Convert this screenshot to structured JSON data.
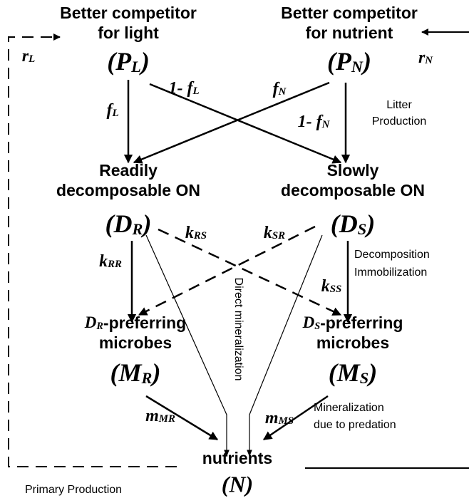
{
  "nodes": [
    {
      "title": [
        "Better competitor",
        "for light"
      ],
      "symbol": "(P",
      "sub": "L",
      "close": ")"
    },
    {
      "title": [
        "Better competitor",
        "for nutrient"
      ],
      "symbol": "(P",
      "sub": "N",
      "close": ")"
    },
    {
      "title": [
        "Readily",
        "decomposable ON"
      ],
      "symbol": "(D",
      "sub": "R",
      "close": ")"
    },
    {
      "title": [
        "Slowly",
        "decomposable ON"
      ],
      "symbol": "(D",
      "sub": "S",
      "close": ")"
    },
    {
      "prefix": "D",
      "prefix_sub": "R",
      "title": [
        "-preferring",
        "microbes"
      ],
      "symbol": "(M",
      "sub": "R",
      "close": ")"
    },
    {
      "prefix": "D",
      "prefix_sub": "S",
      "title": [
        "-preferring",
        "microbes"
      ],
      "symbol": "(M",
      "sub": "S",
      "close": ")"
    },
    {
      "title": [
        "nutrients"
      ],
      "symbol": "(N)"
    }
  ],
  "edge_labels": [
    {
      "main": "r",
      "sub": "L"
    },
    {
      "main": "r",
      "sub": "N"
    },
    {
      "main": "f",
      "sub": "L"
    },
    {
      "main": "1- f",
      "sub": "L"
    },
    {
      "main": "f",
      "sub": "N"
    },
    {
      "main": "1- f",
      "sub": "N"
    },
    {
      "main": "k",
      "sub": "RR"
    },
    {
      "main": "k",
      "sub": "RS"
    },
    {
      "main": "k",
      "sub": "SR"
    },
    {
      "main": "k",
      "sub": "SS"
    },
    {
      "main": "m",
      "sub": "MR"
    },
    {
      "main": "m",
      "sub": "MS"
    }
  ],
  "annotations": {
    "litter": [
      "Litter",
      "Production"
    ],
    "decomposition": [
      "Decomposition",
      "Immobilization"
    ],
    "direct": "Direct mineralization",
    "predation": [
      "Mineralization",
      "due to predation"
    ],
    "primary": "Primary Production"
  }
}
